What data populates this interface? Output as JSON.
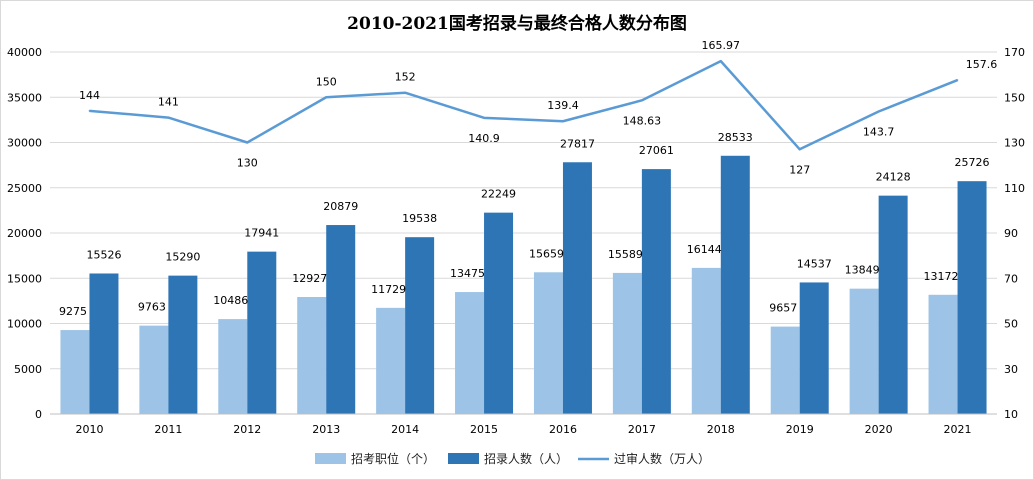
{
  "chart_data": {
    "type": "bar",
    "title": "2010-2021国考招录与最终合格人数分布图",
    "categories": [
      "2010",
      "2011",
      "2012",
      "2013",
      "2014",
      "2015",
      "2016",
      "2017",
      "2018",
      "2019",
      "2020",
      "2021"
    ],
    "series": [
      {
        "name": "招考职位（个）",
        "type": "bar",
        "axis": "left",
        "color": "#9dc3e6",
        "values": [
          9275,
          9763,
          10486,
          12927,
          11729,
          13475,
          15659,
          15589,
          16144,
          9657,
          13849,
          13172
        ]
      },
      {
        "name": "招录人数（人）",
        "type": "bar",
        "axis": "left",
        "color": "#2e75b6",
        "values": [
          15526,
          15290,
          17941,
          20879,
          19538,
          22249,
          27817,
          27061,
          28533,
          14537,
          24128,
          25726
        ]
      },
      {
        "name": "过审人数（万人）",
        "type": "line",
        "axis": "right",
        "color": "#5b9bd5",
        "values": [
          144,
          141,
          130,
          150,
          152,
          140.9,
          139.4,
          148.63,
          165.97,
          127,
          143.7,
          157.6
        ]
      }
    ],
    "y_left": {
      "min": 0,
      "max": 40000,
      "ticks": [
        0,
        5000,
        10000,
        15000,
        20000,
        25000,
        30000,
        35000,
        40000
      ]
    },
    "y_right": {
      "min": 10,
      "max": 170,
      "ticks": [
        10,
        30,
        50,
        70,
        90,
        110,
        130,
        150,
        170
      ]
    },
    "line_labels": [
      "144",
      "141",
      "130",
      "150",
      "152",
      "140.9",
      "139.4",
      "148.63",
      "165.97",
      "127",
      "143.7",
      "157.6"
    ],
    "grid": true,
    "legend_position": "bottom"
  }
}
